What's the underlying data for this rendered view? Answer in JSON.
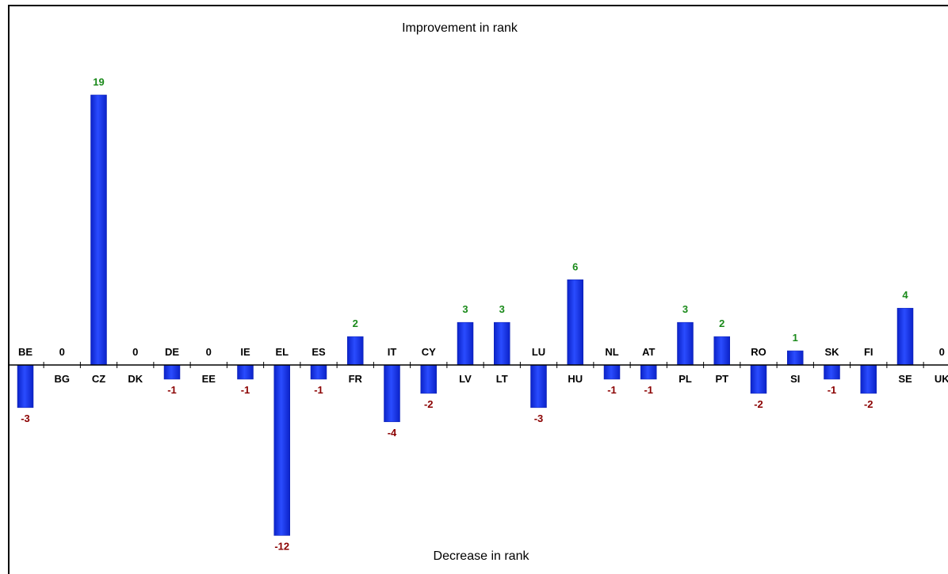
{
  "chart_data": {
    "type": "bar",
    "title_top": "Improvement in rank",
    "title_bottom": "Decrease in rank",
    "categories": [
      "BE",
      "BG",
      "CZ",
      "DK",
      "DE",
      "EE",
      "IE",
      "EL",
      "ES",
      "FR",
      "IT",
      "CY",
      "LV",
      "LT",
      "LU",
      "HU",
      "NL",
      "AT",
      "PL",
      "PT",
      "RO",
      "SI",
      "SK",
      "FI",
      "SE",
      "UK"
    ],
    "values": [
      -3,
      0,
      19,
      0,
      -1,
      0,
      -1,
      -12,
      -1,
      2,
      -4,
      -2,
      3,
      3,
      -3,
      6,
      -1,
      -1,
      3,
      2,
      -2,
      1,
      -1,
      -2,
      4,
      0
    ],
    "ylim": [
      -12,
      19
    ],
    "grid": false,
    "legend": "none"
  },
  "colors": {
    "bar": "#1f3ff5",
    "bar_dark": "#0a1fb0",
    "positive_value": "#1a8a1a",
    "negative_value": "#8b0000",
    "zero_value": "#000000",
    "axis": "#000000"
  }
}
